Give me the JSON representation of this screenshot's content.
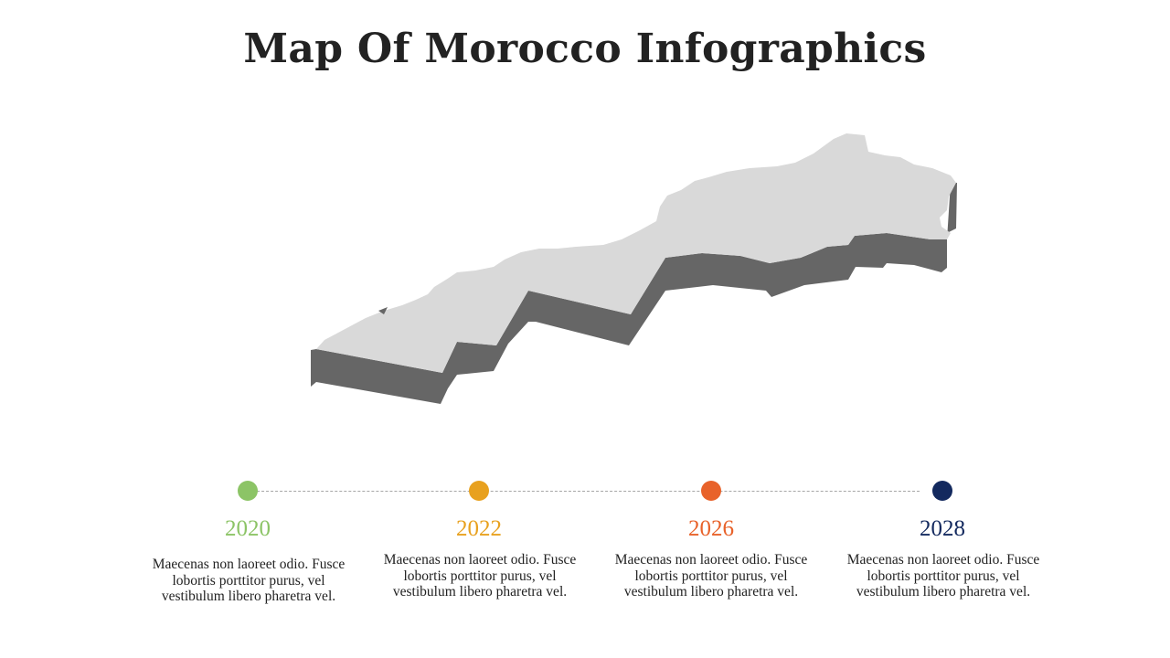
{
  "title": "Map Of Morocco Infographics",
  "colors": {
    "map_top": "#d9d9d9",
    "map_side": "#666666",
    "timeline_line": "#a6a6a6"
  },
  "timeline": [
    {
      "year": "2020",
      "color": "#8cc466",
      "text": "Maecenas non laoreet odio. Fusce lobortis porttitor purus, vel vestibulum libero pharetra vel."
    },
    {
      "year": "2022",
      "color": "#e8a11f",
      "text": "Maecenas non laoreet odio. Fusce lobortis porttitor purus, vel vestibulum libero pharetra vel."
    },
    {
      "year": "2026",
      "color": "#e8622a",
      "text": "Maecenas non laoreet odio. Fusce lobortis porttitor purus, vel vestibulum libero pharetra vel."
    },
    {
      "year": "2028",
      "color": "#13295e",
      "text": "Maecenas non laoreet odio. Fusce lobortis porttitor purus, vel vestibulum libero pharetra vel."
    }
  ]
}
